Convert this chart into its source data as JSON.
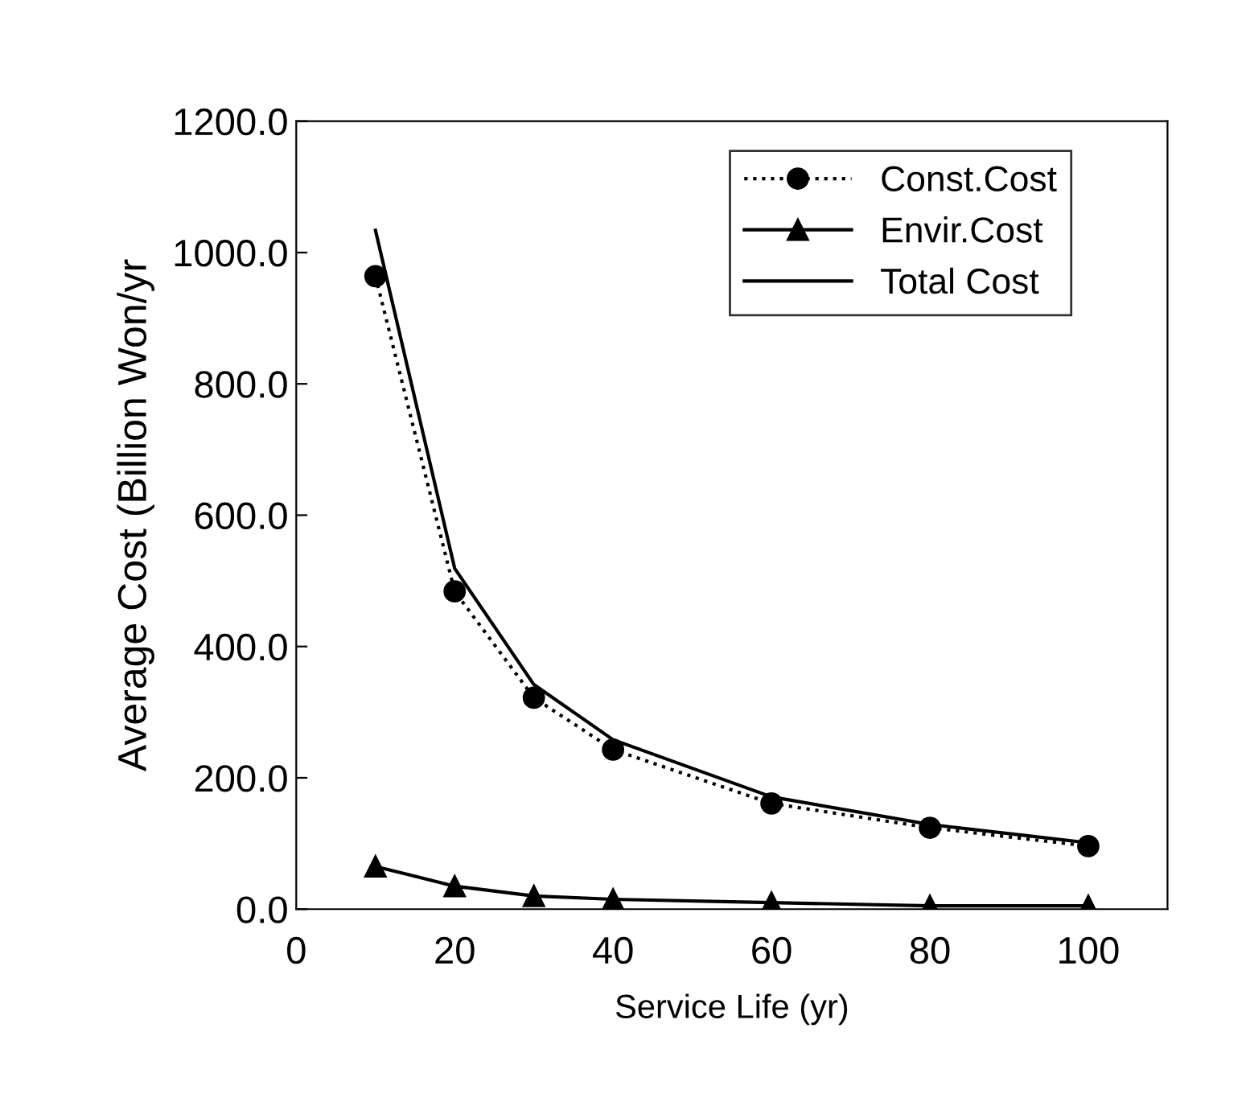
{
  "chart_data": {
    "type": "line",
    "xlabel": "Service Life (yr)",
    "ylabel": "Average Cost (Billion Won/yr",
    "xlim": [
      0,
      110
    ],
    "xticks": [
      0,
      20,
      40,
      60,
      80,
      100
    ],
    "ylim": [
      0,
      1200
    ],
    "yticks": [
      {
        "value": 0,
        "label": "0.0"
      },
      {
        "value": 200,
        "label": "200.0"
      },
      {
        "value": 400,
        "label": "400.0"
      },
      {
        "value": 600,
        "label": "600.0"
      },
      {
        "value": 800,
        "label": "800.0"
      },
      {
        "value": 1000,
        "label": "1000.0"
      },
      {
        "value": 1200,
        "label": "1200.0"
      }
    ],
    "x": [
      10,
      20,
      30,
      40,
      60,
      80,
      100
    ],
    "series": [
      {
        "name": "Const.Cost",
        "color": "#000000",
        "marker": "circle",
        "line_style": "dotted",
        "values": [
          964,
          484,
          322,
          243,
          161,
          124,
          96
        ]
      },
      {
        "name": "Envir.Cost",
        "color": "#000000",
        "marker": "triangle",
        "line_style": "solid",
        "values": [
          65,
          35,
          20,
          15,
          10,
          5,
          5
        ]
      },
      {
        "name": "Total Cost",
        "color": "#000000",
        "marker": "none",
        "line_style": "solid",
        "values": [
          1034,
          519,
          342,
          258,
          171,
          129,
          101
        ]
      }
    ],
    "legend": "top right",
    "grid": false
  }
}
